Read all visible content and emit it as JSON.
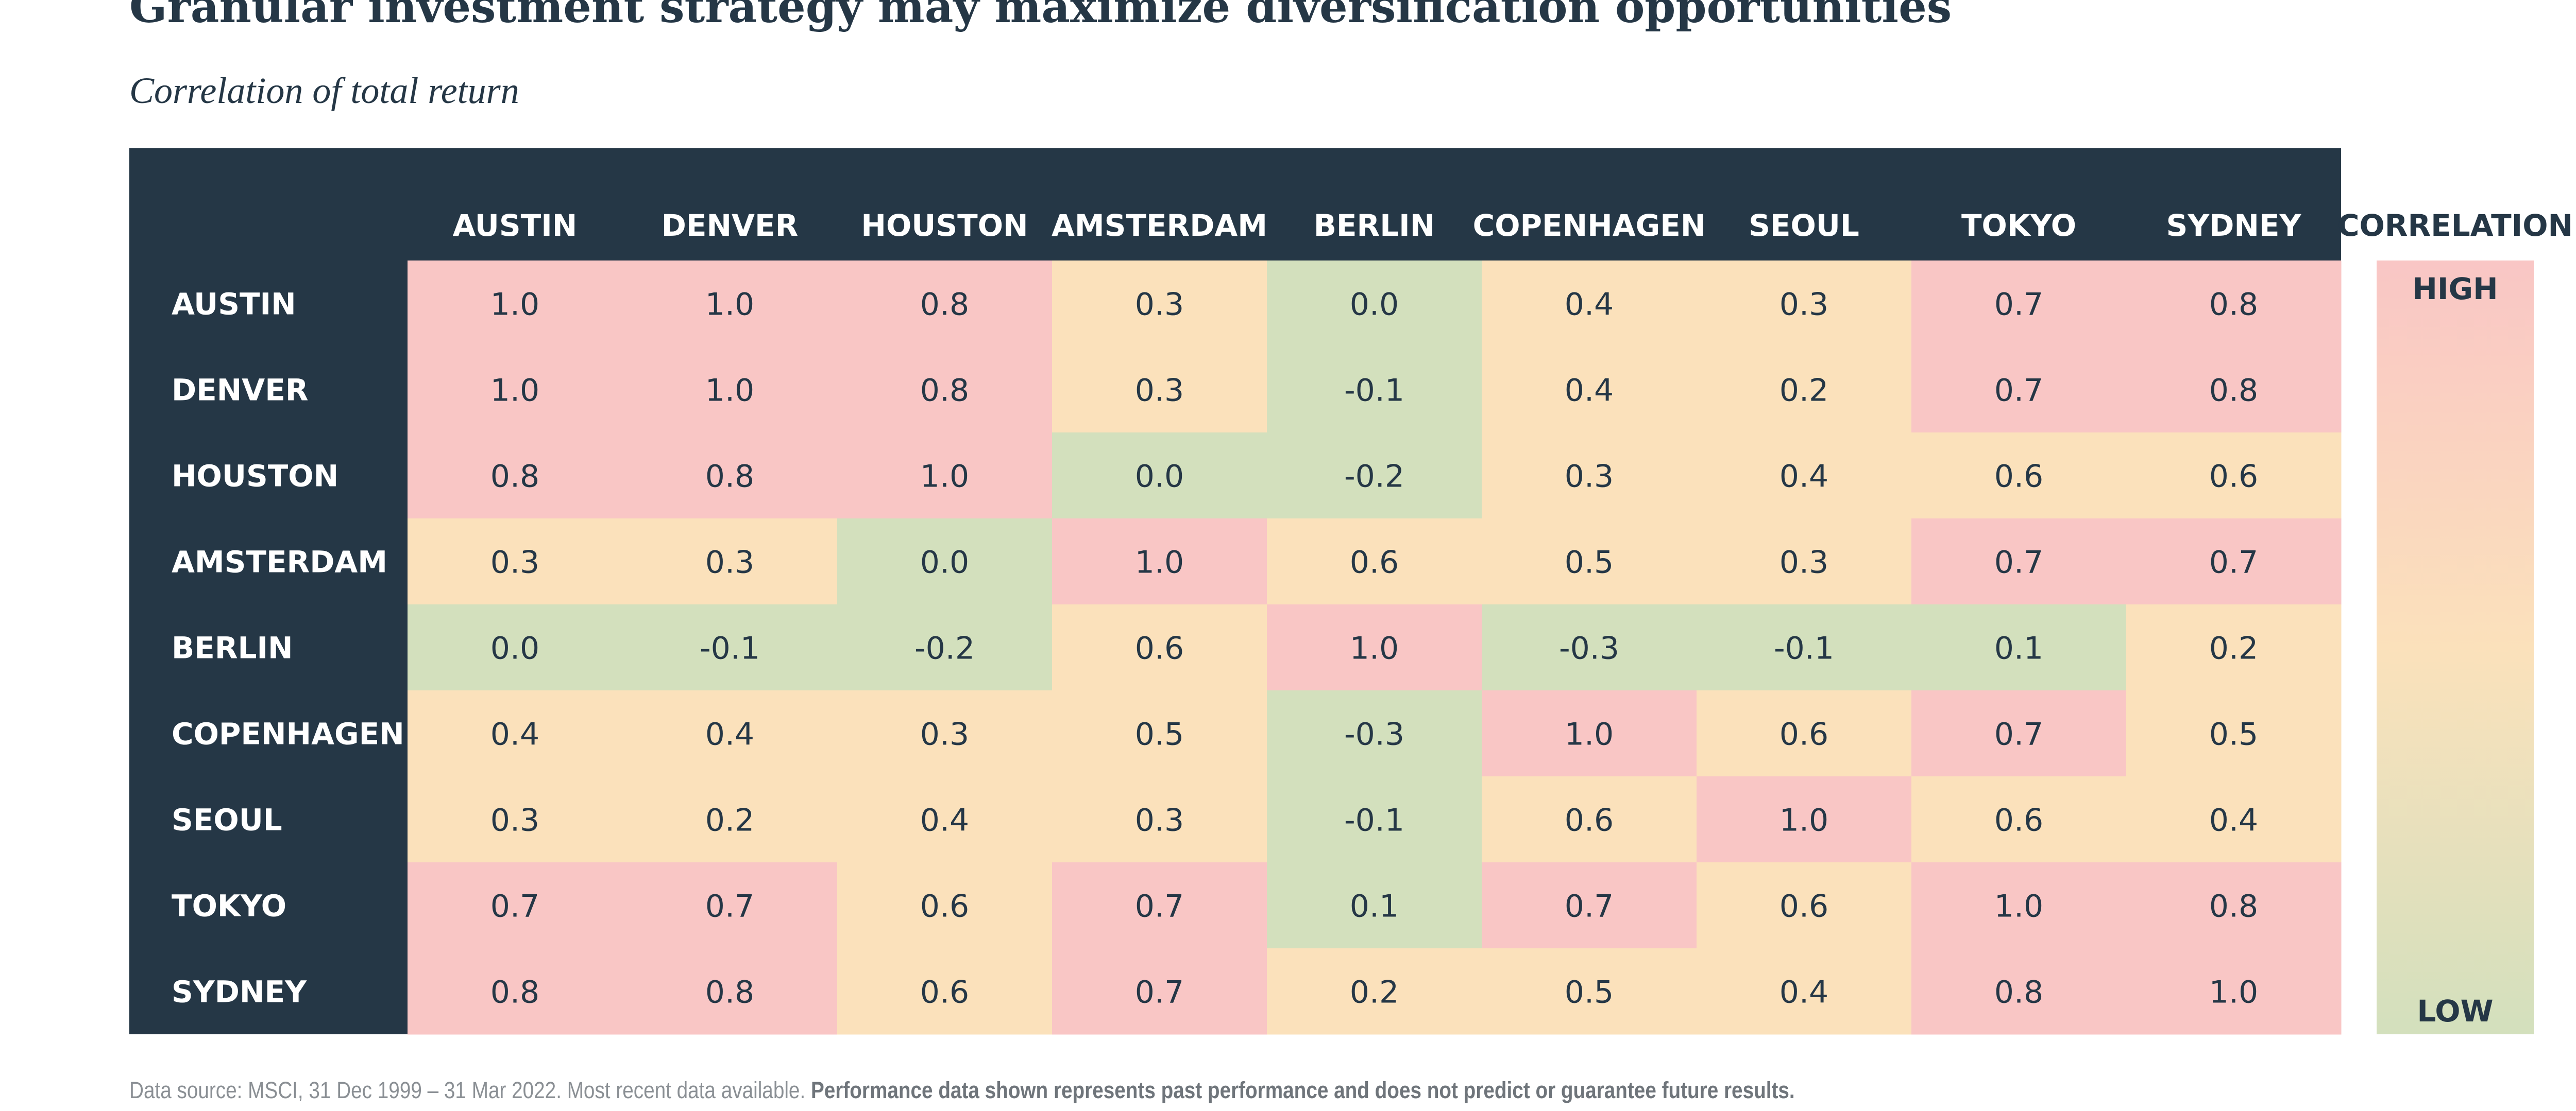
{
  "chart_data": {
    "type": "heatmap",
    "title": "Granular investment strategy may maximize diversification opportunities",
    "subtitle": "Correlation of total return",
    "rows": [
      "AUSTIN",
      "DENVER",
      "HOUSTON",
      "AMSTERDAM",
      "BERLIN",
      "COPENHAGEN",
      "SEOUL",
      "TOKYO",
      "SYDNEY"
    ],
    "columns": [
      "AUSTIN",
      "DENVER",
      "HOUSTON",
      "AMSTERDAM",
      "BERLIN",
      "COPENHAGEN",
      "SEOUL",
      "TOKYO",
      "SYDNEY"
    ],
    "values": [
      [
        1.0,
        1.0,
        0.8,
        0.3,
        0.0,
        0.4,
        0.3,
        0.7,
        0.8
      ],
      [
        1.0,
        1.0,
        0.8,
        0.3,
        -0.1,
        0.4,
        0.2,
        0.7,
        0.8
      ],
      [
        0.8,
        0.8,
        1.0,
        0.0,
        -0.2,
        0.3,
        0.4,
        0.6,
        0.6
      ],
      [
        0.3,
        0.3,
        0.0,
        1.0,
        0.6,
        0.5,
        0.3,
        0.7,
        0.7
      ],
      [
        0.0,
        -0.1,
        -0.2,
        0.6,
        1.0,
        -0.3,
        -0.1,
        0.1,
        0.2
      ],
      [
        0.4,
        0.4,
        0.3,
        0.5,
        -0.3,
        1.0,
        0.6,
        0.7,
        0.5
      ],
      [
        0.3,
        0.2,
        0.4,
        0.3,
        -0.1,
        0.6,
        1.0,
        0.6,
        0.4
      ],
      [
        0.7,
        0.7,
        0.6,
        0.7,
        0.1,
        0.7,
        0.6,
        1.0,
        0.8
      ],
      [
        0.8,
        0.8,
        0.6,
        0.7,
        0.2,
        0.5,
        0.4,
        0.8,
        1.0
      ]
    ],
    "color_bins": [
      {
        "min": 0.65,
        "color": "#f9c6c5"
      },
      {
        "min": 0.15,
        "color": "#fbe1bb"
      },
      {
        "min": -1.0,
        "color": "#d3e0bd"
      }
    ],
    "legend": {
      "title": "CORRELATION",
      "high_label": "HIGH",
      "low_label": "LOW",
      "high_color": "#f9c6c5",
      "mid_color": "#fbe1bb",
      "low_color": "#d3e0bd"
    },
    "header_color": "#253746",
    "text_color": "#253746"
  },
  "footer": {
    "source": "Data source: MSCI, 31 Dec 1999 – 31 Mar 2022. Most recent data available.",
    "disclaimer": "Performance data shown represents past performance and does not predict or guarantee future results."
  }
}
